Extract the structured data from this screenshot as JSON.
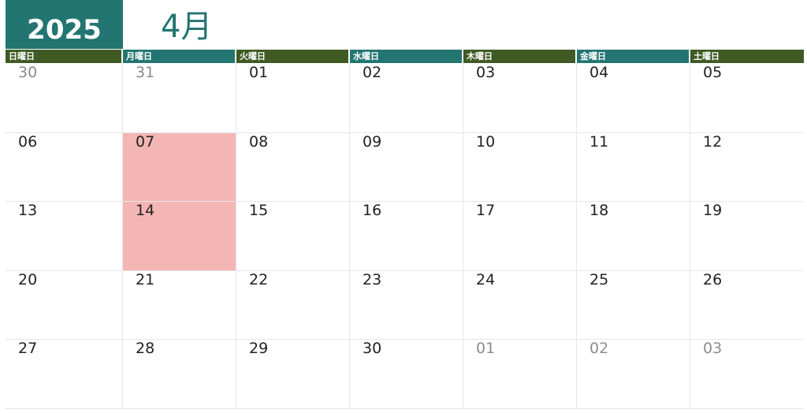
{
  "header": {
    "year": "2025",
    "month": "4月"
  },
  "colors": {
    "year_bg": "#237571",
    "header_dark": "#3f5a23",
    "header_teal": "#237571",
    "highlight": "#f4b5b5"
  },
  "weekdays": [
    "日曜日",
    "月曜日",
    "火曜日",
    "水曜日",
    "木曜日",
    "金曜日",
    "土曜日"
  ],
  "weeks": [
    [
      {
        "d": "30",
        "other": true
      },
      {
        "d": "31",
        "other": true
      },
      {
        "d": "01"
      },
      {
        "d": "02"
      },
      {
        "d": "03"
      },
      {
        "d": "04"
      },
      {
        "d": "05"
      }
    ],
    [
      {
        "d": "06"
      },
      {
        "d": "07",
        "highlight": true
      },
      {
        "d": "08"
      },
      {
        "d": "09"
      },
      {
        "d": "10"
      },
      {
        "d": "11"
      },
      {
        "d": "12"
      }
    ],
    [
      {
        "d": "13"
      },
      {
        "d": "14",
        "highlight": true
      },
      {
        "d": "15"
      },
      {
        "d": "16"
      },
      {
        "d": "17"
      },
      {
        "d": "18"
      },
      {
        "d": "19"
      }
    ],
    [
      {
        "d": "20"
      },
      {
        "d": "21"
      },
      {
        "d": "22"
      },
      {
        "d": "23"
      },
      {
        "d": "24"
      },
      {
        "d": "25"
      },
      {
        "d": "26"
      }
    ],
    [
      {
        "d": "27"
      },
      {
        "d": "28"
      },
      {
        "d": "29"
      },
      {
        "d": "30"
      },
      {
        "d": "01",
        "other": true
      },
      {
        "d": "02",
        "other": true
      },
      {
        "d": "03",
        "other": true
      }
    ]
  ]
}
